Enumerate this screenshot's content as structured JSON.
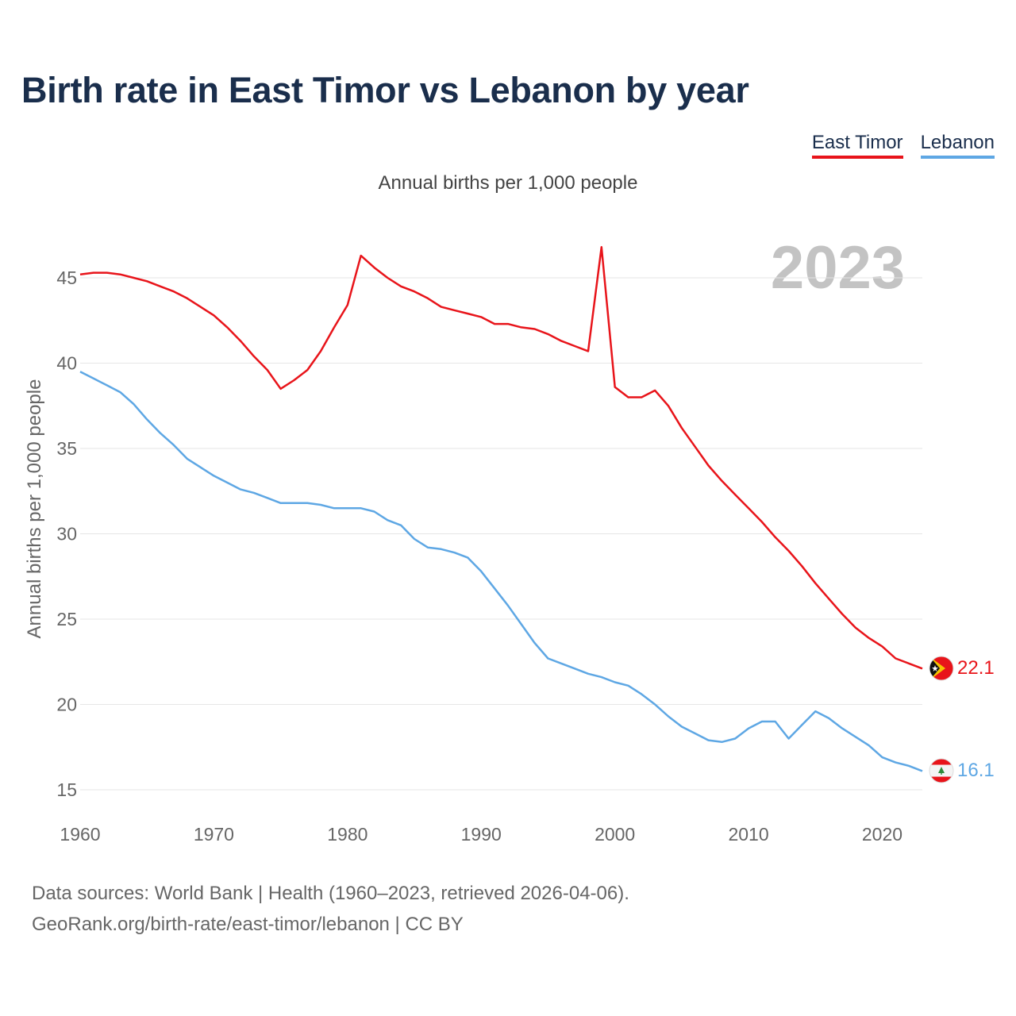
{
  "title": "Birth rate in East Timor vs Lebanon by year",
  "subtitle": "Annual births per 1,000 people",
  "year_watermark": "2023",
  "legend": [
    {
      "name": "East Timor",
      "color": "#e8141a"
    },
    {
      "name": "Lebanon",
      "color": "#5ea7e4"
    }
  ],
  "footer": {
    "line1": "Data sources: World Bank | Health (1960–2023, retrieved 2026-04-06).",
    "line2": "GeoRank.org/birth-rate/east-timor/lebanon | CC BY"
  },
  "chart_data": {
    "type": "line",
    "title": "Birth rate in East Timor vs Lebanon by year",
    "ylabel": "Annual births per 1,000 people",
    "xlabel": "",
    "xlim": [
      1960,
      2023
    ],
    "ylim": [
      15,
      47
    ],
    "x_ticks": [
      1960,
      1970,
      1980,
      1990,
      2000,
      2010,
      2020
    ],
    "y_ticks": [
      15,
      20,
      25,
      30,
      35,
      40,
      45
    ],
    "grid": true,
    "x": [
      1960,
      1961,
      1962,
      1963,
      1964,
      1965,
      1966,
      1967,
      1968,
      1969,
      1970,
      1971,
      1972,
      1973,
      1974,
      1975,
      1976,
      1977,
      1978,
      1979,
      1980,
      1981,
      1982,
      1983,
      1984,
      1985,
      1986,
      1987,
      1988,
      1989,
      1990,
      1991,
      1992,
      1993,
      1994,
      1995,
      1996,
      1997,
      1998,
      1999,
      2000,
      2001,
      2002,
      2003,
      2004,
      2005,
      2006,
      2007,
      2008,
      2009,
      2010,
      2011,
      2012,
      2013,
      2014,
      2015,
      2016,
      2017,
      2018,
      2019,
      2020,
      2021,
      2022,
      2023
    ],
    "series": [
      {
        "name": "East Timor",
        "color": "#e8141a",
        "end_label": "22.1",
        "values": [
          45.2,
          45.3,
          45.3,
          45.2,
          45.0,
          44.8,
          44.5,
          44.2,
          43.8,
          43.3,
          42.8,
          42.1,
          41.3,
          40.4,
          39.6,
          38.5,
          39.0,
          39.6,
          40.7,
          42.1,
          43.4,
          46.3,
          45.6,
          45.0,
          44.5,
          44.2,
          43.8,
          43.3,
          43.1,
          42.9,
          42.7,
          42.3,
          42.3,
          42.1,
          42.0,
          41.7,
          41.3,
          41.0,
          40.7,
          46.8,
          38.6,
          38.0,
          38.0,
          38.4,
          37.5,
          36.2,
          35.1,
          34.0,
          33.1,
          32.3,
          31.5,
          30.7,
          29.8,
          29.0,
          28.1,
          27.1,
          26.2,
          25.3,
          24.5,
          23.9,
          23.4,
          22.7,
          22.4,
          22.1
        ]
      },
      {
        "name": "Lebanon",
        "color": "#5ea7e4",
        "end_label": "16.1",
        "values": [
          39.5,
          39.1,
          38.7,
          38.3,
          37.6,
          36.7,
          35.9,
          35.2,
          34.4,
          33.9,
          33.4,
          33.0,
          32.6,
          32.4,
          32.1,
          31.8,
          31.8,
          31.8,
          31.7,
          31.5,
          31.5,
          31.5,
          31.3,
          30.8,
          30.5,
          29.7,
          29.2,
          29.1,
          28.9,
          28.6,
          27.8,
          26.8,
          25.8,
          24.7,
          23.6,
          22.7,
          22.4,
          22.1,
          21.8,
          21.6,
          21.3,
          21.1,
          20.6,
          20.0,
          19.3,
          18.7,
          18.3,
          17.9,
          17.8,
          18.0,
          18.6,
          19.0,
          19.0,
          18.0,
          18.8,
          19.6,
          19.2,
          18.6,
          18.1,
          17.6,
          16.9,
          16.6,
          16.4,
          16.1
        ]
      }
    ]
  }
}
